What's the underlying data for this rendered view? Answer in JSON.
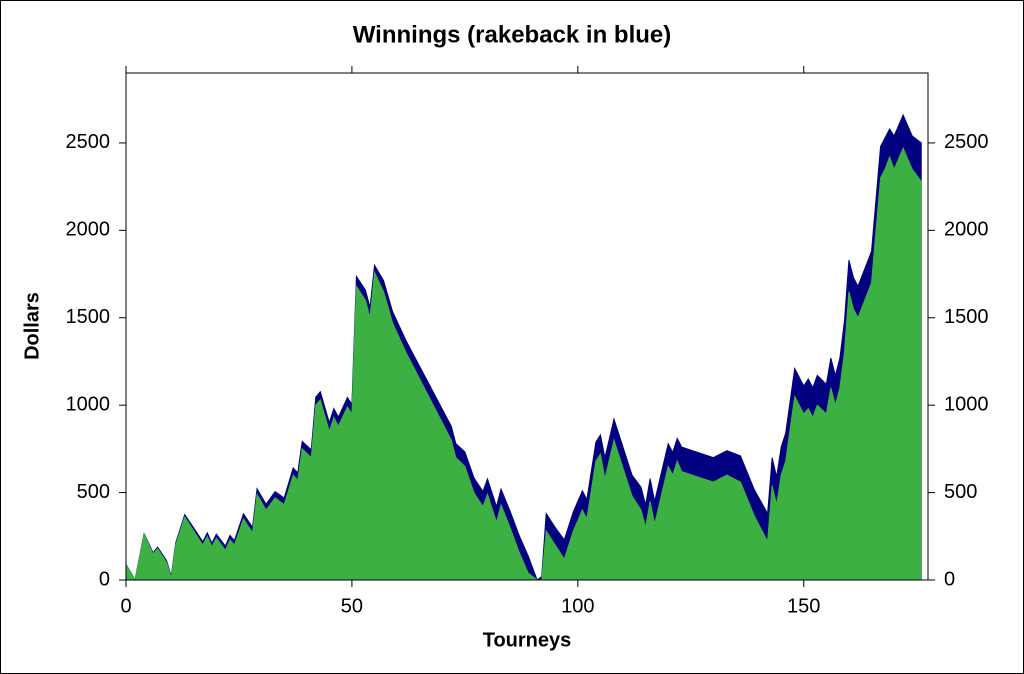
{
  "chart_data": {
    "type": "area",
    "title": "Winnings (rakeback in blue)",
    "x_label": "Tourneys",
    "y_label": "Dollars",
    "x": [
      0,
      2,
      4,
      6,
      7,
      9,
      10,
      11,
      13,
      15,
      17,
      18,
      19,
      20,
      22,
      23,
      24,
      26,
      28,
      29,
      31,
      33,
      35,
      37,
      38,
      39,
      41,
      42,
      43,
      45,
      46,
      47,
      49,
      50,
      51,
      53,
      54,
      55,
      57,
      59,
      62,
      66,
      70,
      72,
      73,
      75,
      77,
      79,
      80,
      82,
      83,
      85,
      87,
      89,
      91,
      92,
      93,
      95,
      97,
      99,
      101,
      102,
      104,
      105,
      106,
      108,
      110,
      112,
      114,
      115,
      116,
      117,
      120,
      121,
      122,
      123,
      130,
      133,
      136,
      139,
      142,
      143,
      144,
      145,
      146,
      148,
      150,
      151,
      152,
      153,
      155,
      156,
      157,
      158,
      159,
      160,
      161,
      162,
      165,
      167,
      168,
      169,
      170,
      172,
      174,
      176
    ],
    "series": [
      {
        "color": "#000080",
        "values": [
          90,
          2,
          264,
          157,
          188,
          110,
          21,
          212,
          374,
          297,
          219,
          270,
          211,
          262,
          194,
          255,
          226,
          379,
          301,
          522,
          434,
          506,
          469,
          641,
          612,
          793,
          745,
          1046,
          1077,
          900,
          981,
          932,
          1044,
          1005,
          1736,
          1658,
          1559,
          1800,
          1713,
          1535,
          1368,
          1173,
          977,
          879,
          780,
          733,
          585,
          507,
          578,
          420,
          521,
          394,
          256,
          138,
          0,
          20,
          380,
          300,
          230,
          390,
          510,
          460,
          790,
          830,
          700,
          920,
          760,
          600,
          530,
          430,
          580,
          450,
          780,
          730,
          810,
          760,
          700,
          740,
          710,
          520,
          380,
          700,
          590,
          760,
          840,
          1210,
          1110,
          1150,
          1100,
          1170,
          1120,
          1270,
          1170,
          1270,
          1480,
          1830,
          1730,
          1680,
          1880,
          2480,
          2530,
          2580,
          2540,
          2660,
          2540,
          2500
        ]
      },
      {
        "color": "#3cb043",
        "values": [
          90,
          0,
          260,
          150,
          180,
          100,
          10,
          200,
          360,
          280,
          200,
          250,
          190,
          240,
          170,
          230,
          200,
          350,
          270,
          490,
          400,
          470,
          430,
          600,
          570,
          750,
          700,
          1000,
          1030,
          850,
          930,
          880,
          990,
          950,
          1680,
          1600,
          1500,
          1760,
          1650,
          1470,
          1300,
          1100,
          900,
          800,
          700,
          650,
          500,
          420,
          490,
          330,
          430,
          300,
          160,
          40,
          0,
          0,
          280,
          200,
          120,
          280,
          400,
          350,
          680,
          720,
          580,
          800,
          640,
          480,
          400,
          300,
          450,
          320,
          650,
          600,
          680,
          620,
          560,
          600,
          560,
          370,
          220,
          540,
          430,
          600,
          680,
          1050,
          950,
          980,
          930,
          1000,
          950,
          1100,
          1000,
          1100,
          1300,
          1650,
          1550,
          1500,
          1700,
          2300,
          2350,
          2420,
          2350,
          2470,
          2350,
          2280
        ]
      }
    ],
    "xlim": [
      0,
      177.5
    ],
    "ylim": [
      0,
      2900
    ],
    "xticks": [
      0,
      50,
      100,
      150
    ],
    "yticks": [
      0,
      500,
      1000,
      1500,
      2000,
      2500
    ]
  }
}
